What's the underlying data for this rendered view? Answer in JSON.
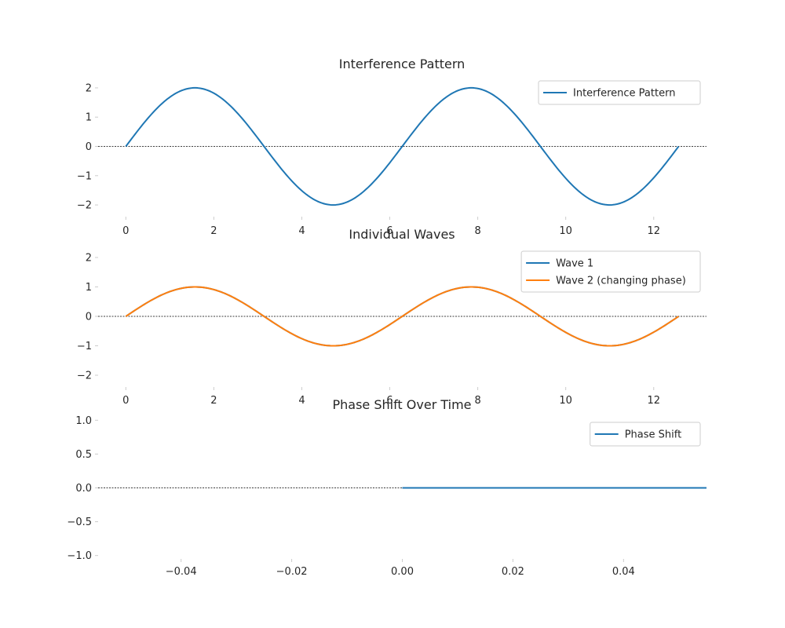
{
  "figure": {
    "background": "#ffffff"
  },
  "chart_data": [
    {
      "type": "line",
      "title": "Interference Pattern",
      "xlabel": "",
      "ylabel": "",
      "xlim": [
        -0.63,
        13.2
      ],
      "ylim": [
        -2.4,
        2.4
      ],
      "xticks": [
        0,
        2,
        4,
        6,
        8,
        10,
        12
      ],
      "yticks": [
        -2,
        -1,
        0,
        1,
        2
      ],
      "grid": false,
      "legend": "top-right",
      "baseline": 0,
      "series": [
        {
          "name": "Interference Pattern",
          "color": "#1f77b4",
          "function": "2*sin(x)",
          "x_range": [
            0,
            12.566
          ],
          "x": [
            0,
            0.52,
            1.05,
            1.57,
            2.09,
            2.62,
            3.14,
            3.67,
            4.19,
            4.71,
            5.24,
            5.76,
            6.28,
            6.81,
            7.33,
            7.85,
            8.38,
            8.9,
            9.42,
            9.95,
            10.47,
            11.0,
            11.52,
            12.04,
            12.57
          ],
          "y": [
            0,
            1.0,
            1.73,
            2.0,
            1.73,
            1.0,
            0,
            -1.0,
            -1.73,
            -2.0,
            -1.73,
            -1.0,
            0,
            1.0,
            1.73,
            2.0,
            1.73,
            1.0,
            0,
            -1.0,
            -1.73,
            -2.0,
            -1.73,
            -1.0,
            0
          ]
        }
      ]
    },
    {
      "type": "line",
      "title": "Individual Waves",
      "xlabel": "",
      "ylabel": "",
      "xlim": [
        -0.63,
        13.2
      ],
      "ylim": [
        -2.4,
        2.4
      ],
      "xticks": [
        0,
        2,
        4,
        6,
        8,
        10,
        12
      ],
      "yticks": [
        -2,
        -1,
        0,
        1,
        2
      ],
      "grid": false,
      "legend": "top-right",
      "baseline": 0,
      "series": [
        {
          "name": "Wave 1",
          "color": "#1f77b4",
          "function": "sin(x)",
          "x_range": [
            0,
            12.566
          ],
          "x": [
            0,
            0.52,
            1.05,
            1.57,
            2.09,
            2.62,
            3.14,
            3.67,
            4.19,
            4.71,
            5.24,
            5.76,
            6.28,
            6.81,
            7.33,
            7.85,
            8.38,
            8.9,
            9.42,
            9.95,
            10.47,
            11.0,
            11.52,
            12.04,
            12.57
          ],
          "y": [
            0,
            0.5,
            0.87,
            1.0,
            0.87,
            0.5,
            0,
            -0.5,
            -0.87,
            -1.0,
            -0.87,
            -0.5,
            0,
            0.5,
            0.87,
            1.0,
            0.87,
            0.5,
            0,
            -0.5,
            -0.87,
            -1.0,
            -0.87,
            -0.5,
            0
          ]
        },
        {
          "name": "Wave 2 (changing phase)",
          "color": "#ff7f0e",
          "function": "sin(x)",
          "x_range": [
            0,
            12.566
          ],
          "x": [
            0,
            0.52,
            1.05,
            1.57,
            2.09,
            2.62,
            3.14,
            3.67,
            4.19,
            4.71,
            5.24,
            5.76,
            6.28,
            6.81,
            7.33,
            7.85,
            8.38,
            8.9,
            9.42,
            9.95,
            10.47,
            11.0,
            11.52,
            12.04,
            12.57
          ],
          "y": [
            0,
            0.5,
            0.87,
            1.0,
            0.87,
            0.5,
            0,
            -0.5,
            -0.87,
            -1.0,
            -0.87,
            -0.5,
            0,
            0.5,
            0.87,
            1.0,
            0.87,
            0.5,
            0,
            -0.5,
            -0.87,
            -1.0,
            -0.87,
            -0.5,
            0
          ]
        }
      ]
    },
    {
      "type": "line",
      "title": "Phase Shift Over Time",
      "xlabel": "",
      "ylabel": "",
      "xlim": [
        -0.055,
        0.055
      ],
      "ylim": [
        -1.05,
        1.05
      ],
      "xticks": [
        -0.04,
        -0.02,
        0.0,
        0.02,
        0.04
      ],
      "xtick_labels": [
        "−0.04",
        "−0.02",
        "0.00",
        "0.02",
        "0.04"
      ],
      "yticks": [
        -1.0,
        -0.5,
        0.0,
        0.5,
        1.0
      ],
      "ytick_labels": [
        "−1.0",
        "−0.5",
        "0.0",
        "0.5",
        "1.0"
      ],
      "grid": false,
      "legend": "top-right",
      "baseline": 0,
      "series": [
        {
          "name": "Phase Shift",
          "color": "#1f77b4",
          "x": [
            0.0,
            0.055
          ],
          "y": [
            0.0,
            0.0
          ]
        }
      ]
    }
  ]
}
